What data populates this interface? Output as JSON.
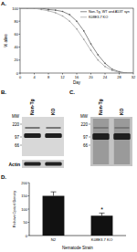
{
  "panel_labels": [
    "A.",
    "B.",
    "C.",
    "D."
  ],
  "chart_data": [
    {
      "type": "line",
      "x_label": "Day",
      "y_label": "% alive",
      "x": [
        0,
        2,
        4,
        6,
        8,
        10,
        12,
        14,
        16,
        18,
        20,
        22,
        24,
        26,
        28,
        30,
        32
      ],
      "xlim": [
        0,
        32
      ],
      "xticks": [
        0,
        4,
        8,
        12,
        16,
        20,
        24,
        28,
        32
      ],
      "ylim": [
        0,
        100
      ],
      "yticks": [
        0,
        20,
        40,
        60,
        80,
        100
      ],
      "legend": "top-right",
      "marker": "circle",
      "series": [
        {
          "name": "Non-Tg, WT and A53T syn",
          "color": "#555555",
          "values": [
            100,
            100,
            100,
            100,
            98,
            97,
            95,
            90,
            80,
            65,
            45,
            28,
            15,
            6,
            2,
            0,
            0
          ]
        },
        {
          "name": "K08E3.7 KO",
          "color": "#999999",
          "values": [
            100,
            100,
            100,
            98,
            96,
            93,
            88,
            80,
            68,
            52,
            35,
            20,
            10,
            4,
            1,
            0,
            0
          ]
        }
      ]
    },
    {
      "type": "bar",
      "x_label": "Nematode Strain",
      "y_label": "Relative Optical Density",
      "categories": [
        "N2",
        "K08E3.7 KO"
      ],
      "values": [
        150,
        75
      ],
      "errors": [
        15,
        10
      ],
      "colors": [
        "#111111",
        "#111111"
      ],
      "ylim": [
        0,
        200
      ],
      "yticks": [
        0,
        50,
        100,
        150,
        200
      ],
      "annotations": [
        {
          "text": "*",
          "category": "K08E3.7 KO"
        }
      ]
    }
  ],
  "blots": [
    {
      "lanes": [
        "Non-Tg",
        "KO"
      ],
      "mw_label": "MW",
      "mw_markers": [
        220,
        97,
        66
      ],
      "loading_control": "Actin"
    },
    {
      "lanes": [
        "Non-Tg",
        "KO"
      ],
      "mw_label": "MW",
      "mw_markers": [
        220,
        97,
        66
      ]
    }
  ]
}
